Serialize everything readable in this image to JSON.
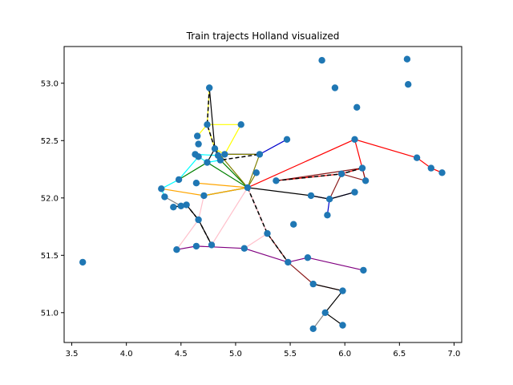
{
  "chart_data": {
    "type": "scatter",
    "title": "Train trajects Holland visualized",
    "xlabel": "",
    "ylabel": "",
    "xlim": [
      3.43,
      7.07
    ],
    "ylim": [
      50.74,
      53.32
    ],
    "xticks": [
      3.5,
      4.0,
      4.5,
      5.0,
      5.5,
      6.0,
      6.5,
      7.0
    ],
    "xtick_labels": [
      "3.5",
      "4.0",
      "4.5",
      "5.0",
      "5.5",
      "6.0",
      "6.5",
      "7.0"
    ],
    "yticks": [
      51.0,
      51.5,
      52.0,
      52.5,
      53.0
    ],
    "ytick_labels": [
      "51.0",
      "51.5",
      "52.0",
      "52.5",
      "53.0"
    ],
    "grid": false,
    "point_color": "#1f77b4",
    "points": [
      [
        3.6,
        51.44
      ],
      [
        4.32,
        52.08
      ],
      [
        4.35,
        52.01
      ],
      [
        4.43,
        51.92
      ],
      [
        4.46,
        51.55
      ],
      [
        4.5,
        51.93
      ],
      [
        4.55,
        51.94
      ],
      [
        4.48,
        52.16
      ],
      [
        4.63,
        52.38
      ],
      [
        4.66,
        52.36
      ],
      [
        4.66,
        52.47
      ],
      [
        4.65,
        52.54
      ],
      [
        4.64,
        52.13
      ],
      [
        4.66,
        51.81
      ],
      [
        4.64,
        51.58
      ],
      [
        4.71,
        52.02
      ],
      [
        4.74,
        52.64
      ],
      [
        4.76,
        52.96
      ],
      [
        4.78,
        51.59
      ],
      [
        4.74,
        52.31
      ],
      [
        4.81,
        52.43
      ],
      [
        4.84,
        52.37
      ],
      [
        4.86,
        52.33
      ],
      [
        4.9,
        52.38
      ],
      [
        5.05,
        52.64
      ],
      [
        5.11,
        52.09
      ],
      [
        5.08,
        51.56
      ],
      [
        5.22,
        52.38
      ],
      [
        5.19,
        52.22
      ],
      [
        5.29,
        51.69
      ],
      [
        5.37,
        52.15
      ],
      [
        5.47,
        52.51
      ],
      [
        5.48,
        51.44
      ],
      [
        5.53,
        51.77
      ],
      [
        5.66,
        51.48
      ],
      [
        5.69,
        52.02
      ],
      [
        5.71,
        51.25
      ],
      [
        5.71,
        50.86
      ],
      [
        5.79,
        53.2
      ],
      [
        5.82,
        51.0
      ],
      [
        5.84,
        51.85
      ],
      [
        5.86,
        51.99
      ],
      [
        5.91,
        52.96
      ],
      [
        5.97,
        52.21
      ],
      [
        5.98,
        50.89
      ],
      [
        5.98,
        51.19
      ],
      [
        6.09,
        52.51
      ],
      [
        6.11,
        52.79
      ],
      [
        6.09,
        52.05
      ],
      [
        6.16,
        52.26
      ],
      [
        6.19,
        52.15
      ],
      [
        6.17,
        51.37
      ],
      [
        6.57,
        53.21
      ],
      [
        6.58,
        52.99
      ],
      [
        6.66,
        52.35
      ],
      [
        6.79,
        52.26
      ],
      [
        6.89,
        52.22
      ]
    ],
    "routes": [
      {
        "color": "#ffff00",
        "path": [
          [
            4.74,
            52.64
          ],
          [
            5.05,
            52.64
          ],
          [
            4.9,
            52.38
          ],
          [
            4.81,
            52.43
          ],
          [
            4.74,
            52.64
          ],
          [
            4.65,
            52.54
          ]
        ]
      },
      {
        "color": "#ffff00",
        "path": [
          [
            4.76,
            52.96
          ],
          [
            4.74,
            52.64
          ]
        ]
      },
      {
        "color": "#0000cd",
        "path": [
          [
            4.9,
            52.38
          ],
          [
            5.22,
            52.38
          ],
          [
            5.47,
            52.51
          ]
        ]
      },
      {
        "color": "#00ffff",
        "path": [
          [
            4.32,
            52.08
          ],
          [
            4.48,
            52.16
          ],
          [
            4.66,
            52.36
          ],
          [
            4.74,
            52.31
          ],
          [
            4.86,
            52.33
          ]
        ]
      },
      {
        "color": "#00ffff",
        "path": [
          [
            4.63,
            52.38
          ],
          [
            4.84,
            52.37
          ]
        ]
      },
      {
        "color": "#00ffff",
        "path": [
          [
            4.32,
            52.08
          ],
          [
            4.35,
            52.01
          ]
        ]
      },
      {
        "color": "#008000",
        "path": [
          [
            4.48,
            52.16
          ],
          [
            4.74,
            52.31
          ],
          [
            5.11,
            52.09
          ],
          [
            4.71,
            52.02
          ]
        ]
      },
      {
        "color": "#008000",
        "path": [
          [
            4.86,
            52.33
          ],
          [
            5.11,
            52.09
          ]
        ]
      },
      {
        "color": "#808000",
        "path": [
          [
            4.81,
            52.43
          ],
          [
            5.11,
            52.09
          ],
          [
            5.22,
            52.38
          ],
          [
            4.9,
            52.38
          ]
        ]
      },
      {
        "color": "#808000",
        "path": [
          [
            5.11,
            52.09
          ],
          [
            5.19,
            52.22
          ]
        ]
      },
      {
        "color": "#ffa500",
        "path": [
          [
            4.32,
            52.08
          ],
          [
            4.71,
            52.02
          ],
          [
            5.11,
            52.09
          ],
          [
            4.64,
            52.13
          ]
        ]
      },
      {
        "color": "#ff0000",
        "path": [
          [
            5.11,
            52.09
          ],
          [
            6.09,
            52.51
          ],
          [
            6.66,
            52.35
          ],
          [
            6.79,
            52.26
          ],
          [
            6.89,
            52.22
          ]
        ]
      },
      {
        "color": "#ff0000",
        "path": [
          [
            5.37,
            52.15
          ],
          [
            5.97,
            52.21
          ],
          [
            6.16,
            52.26
          ],
          [
            6.19,
            52.15
          ],
          [
            6.09,
            52.51
          ]
        ]
      },
      {
        "color": "#8b1a1a",
        "path": [
          [
            5.37,
            52.15
          ],
          [
            6.16,
            52.26
          ],
          [
            6.19,
            52.15
          ],
          [
            5.97,
            52.21
          ],
          [
            5.86,
            51.99
          ]
        ]
      },
      {
        "color": "#8b1a1a",
        "path": [
          [
            5.11,
            52.09
          ],
          [
            5.29,
            51.69
          ],
          [
            5.48,
            51.44
          ],
          [
            5.71,
            51.25
          ],
          [
            5.98,
            51.19
          ]
        ]
      },
      {
        "color": "#0000cd",
        "path": [
          [
            5.69,
            52.02
          ],
          [
            5.86,
            51.99
          ],
          [
            5.84,
            51.85
          ]
        ]
      },
      {
        "color": "#0000cd",
        "path": [
          [
            6.09,
            52.05
          ],
          [
            5.86,
            51.99
          ]
        ]
      },
      {
        "color": "#000000",
        "path": [
          [
            5.11,
            52.09
          ],
          [
            5.69,
            52.02
          ],
          [
            5.86,
            51.99
          ],
          [
            6.09,
            52.05
          ]
        ]
      },
      {
        "color": "#000000",
        "path": [
          [
            5.71,
            51.25
          ],
          [
            5.98,
            51.19
          ],
          [
            5.82,
            51.0
          ],
          [
            5.98,
            50.89
          ]
        ]
      },
      {
        "color": "#800080",
        "path": [
          [
            5.08,
            51.56
          ],
          [
            5.48,
            51.44
          ],
          [
            5.66,
            51.48
          ],
          [
            6.17,
            51.37
          ]
        ]
      },
      {
        "color": "#800080",
        "path": [
          [
            4.46,
            51.55
          ],
          [
            4.64,
            51.58
          ],
          [
            5.08,
            51.56
          ]
        ]
      },
      {
        "color": "#ffc0cb",
        "path": [
          [
            4.46,
            51.55
          ],
          [
            4.66,
            51.81
          ],
          [
            4.55,
            51.94
          ],
          [
            4.43,
            51.92
          ]
        ]
      },
      {
        "color": "#ffc0cb",
        "path": [
          [
            4.78,
            51.59
          ],
          [
            4.66,
            51.81
          ],
          [
            4.71,
            52.02
          ]
        ]
      },
      {
        "color": "#ffc0cb",
        "path": [
          [
            5.08,
            51.56
          ],
          [
            5.29,
            51.69
          ],
          [
            5.11,
            52.09
          ],
          [
            4.78,
            51.59
          ]
        ]
      },
      {
        "color": "#000000",
        "path": [
          [
            4.43,
            51.92
          ],
          [
            4.55,
            51.94
          ],
          [
            4.66,
            51.81
          ],
          [
            4.78,
            51.59
          ]
        ]
      },
      {
        "color": "#000000",
        "path": [
          [
            4.74,
            52.31
          ],
          [
            4.81,
            52.43
          ],
          [
            4.76,
            52.96
          ]
        ]
      },
      {
        "color": "#808080",
        "path": [
          [
            5.71,
            50.86
          ],
          [
            5.82,
            51.0
          ]
        ]
      },
      {
        "color": "#808080",
        "path": [
          [
            4.35,
            52.01
          ],
          [
            4.5,
            51.93
          ]
        ]
      }
    ],
    "dashed_routes": [
      {
        "color": "#000000",
        "path": [
          [
            4.76,
            52.96
          ],
          [
            4.74,
            52.64
          ],
          [
            4.81,
            52.43
          ],
          [
            4.86,
            52.33
          ],
          [
            5.22,
            52.38
          ]
        ]
      },
      {
        "color": "#000000",
        "path": [
          [
            5.11,
            52.09
          ],
          [
            5.29,
            51.69
          ],
          [
            5.48,
            51.44
          ]
        ]
      },
      {
        "color": "#000000",
        "path": [
          [
            5.37,
            52.15
          ],
          [
            5.97,
            52.21
          ],
          [
            6.16,
            52.26
          ]
        ]
      },
      {
        "color": "#000000",
        "path": [
          [
            4.43,
            51.92
          ],
          [
            4.55,
            51.94
          ],
          [
            4.66,
            51.81
          ],
          [
            4.78,
            51.59
          ]
        ]
      }
    ]
  }
}
